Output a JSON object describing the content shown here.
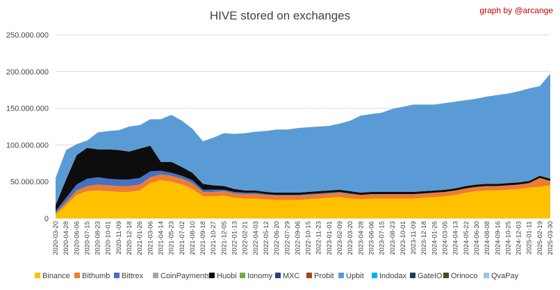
{
  "chart_data": {
    "type": "area",
    "title": "HIVE stored on exchanges",
    "annotation": "graph by @arcange",
    "stacked": true,
    "ylim": [
      0,
      250000000
    ],
    "y_ticks": [
      "0",
      "50.000.000",
      "100.000.000",
      "150.000.000",
      "200.000.000",
      "250.000.000"
    ],
    "x_ticks": [
      "2020-03-20",
      "2020-04-28",
      "2020-06-06",
      "2020-07-15",
      "2020-08-23",
      "2020-10-01",
      "2020-11-09",
      "2020-12-18",
      "2021-01-26",
      "2021-03-06",
      "2021-04-14",
      "2021-05-23",
      "2021-07-02",
      "2021-08-10",
      "2021-09-18",
      "2021-10-27",
      "2021-12-05",
      "2022-01-13",
      "2022-02-21",
      "2022-04-03",
      "2022-05-12",
      "2022-06-20",
      "2022-07-29",
      "2022-09-06",
      "2022-10-15",
      "2022-11-23",
      "2023-01-01",
      "2023-02-09",
      "2023-03-20",
      "2023-04-28",
      "2023-06-06",
      "2023-07-15",
      "2023-08-23",
      "2023-10-01",
      "2023-11-09",
      "2023-12-18",
      "2024-01-26",
      "2024-03-05",
      "2024-04-13",
      "2024-05-22",
      "2024-06-30",
      "2024-08-08",
      "2024-09-16",
      "2024-10-25",
      "2024-12-03",
      "2025-01-11",
      "2025-02-19",
      "2025-03-30"
    ],
    "x": [
      "2020-03-20",
      "2020-04-28",
      "2020-06-06",
      "2020-07-15",
      "2020-08-23",
      "2020-10-01",
      "2020-11-09",
      "2020-12-18",
      "2021-01-26",
      "2021-03-06",
      "2021-04-14",
      "2021-05-23",
      "2021-07-02",
      "2021-08-10",
      "2021-09-18",
      "2021-10-27",
      "2021-12-05",
      "2022-01-13",
      "2022-02-21",
      "2022-04-03",
      "2022-05-12",
      "2022-06-20",
      "2022-07-29",
      "2022-09-06",
      "2022-10-15",
      "2022-11-23",
      "2023-01-01",
      "2023-02-09",
      "2023-03-20",
      "2023-04-28",
      "2023-06-06",
      "2023-07-15",
      "2023-08-23",
      "2023-10-01",
      "2023-11-09",
      "2023-12-18",
      "2024-01-26",
      "2024-03-05",
      "2024-04-13",
      "2024-05-22",
      "2024-06-30",
      "2024-08-08",
      "2024-09-16",
      "2024-10-25",
      "2024-12-03",
      "2025-01-11",
      "2025-02-19",
      "2025-03-30"
    ],
    "series": [
      {
        "name": "Binance",
        "color": "#FFC000",
        "values": [
          5000000,
          18000000,
          32000000,
          37000000,
          38000000,
          37000000,
          36000000,
          36000000,
          38000000,
          48000000,
          52000000,
          50000000,
          46000000,
          40000000,
          30000000,
          30000000,
          31000000,
          28000000,
          27000000,
          27000000,
          26000000,
          25000000,
          25000000,
          25000000,
          26000000,
          27000000,
          28000000,
          29000000,
          27000000,
          26000000,
          27000000,
          27000000,
          27000000,
          27000000,
          27000000,
          28000000,
          29000000,
          30000000,
          32000000,
          35000000,
          37000000,
          38000000,
          38000000,
          39000000,
          40000000,
          42000000,
          43000000,
          45000000
        ]
      },
      {
        "name": "Bithumb",
        "color": "#ED7D31",
        "values": [
          2000000,
          4000000,
          6000000,
          7000000,
          8000000,
          8000000,
          8000000,
          8000000,
          8000000,
          8000000,
          8000000,
          8000000,
          8000000,
          8000000,
          6000000,
          6000000,
          6000000,
          6000000,
          6000000,
          6000000,
          6000000,
          6000000,
          6000000,
          6000000,
          6000000,
          6000000,
          6000000,
          6000000,
          6000000,
          6000000,
          6000000,
          6000000,
          6000000,
          6000000,
          6000000,
          6000000,
          6000000,
          6000000,
          6000000,
          6000000,
          6000000,
          6000000,
          6000000,
          6000000,
          6000000,
          6000000,
          12000000,
          6000000
        ]
      },
      {
        "name": "Bittrex",
        "color": "#4472C4",
        "values": [
          3000000,
          6000000,
          8000000,
          10000000,
          10000000,
          9000000,
          9000000,
          9000000,
          9000000,
          8000000,
          5000000,
          4000000,
          4000000,
          4000000,
          3000000,
          3000000,
          2000000,
          2000000,
          2000000,
          2000000,
          1000000,
          1000000,
          1000000,
          1000000,
          1000000,
          1000000,
          1000000,
          1000000,
          1000000,
          0,
          0,
          0,
          0,
          0,
          0,
          0,
          0,
          0,
          0,
          0,
          0,
          0,
          0,
          0,
          0,
          0,
          0,
          0
        ]
      },
      {
        "name": "CoinPayments",
        "color": "#A5A5A5",
        "values": [
          0,
          0,
          0,
          0,
          0,
          0,
          0,
          0,
          0,
          0,
          0,
          0,
          0,
          0,
          0,
          0,
          0,
          0,
          0,
          0,
          0,
          0,
          0,
          0,
          0,
          0,
          0,
          0,
          0,
          0,
          0,
          0,
          0,
          0,
          0,
          0,
          0,
          0,
          0,
          0,
          0,
          0,
          0,
          0,
          0,
          0,
          0,
          0
        ]
      },
      {
        "name": "Huobi",
        "color": "#0D0D0D",
        "values": [
          8000000,
          25000000,
          40000000,
          42000000,
          38000000,
          40000000,
          40000000,
          38000000,
          40000000,
          35000000,
          12000000,
          15000000,
          12000000,
          10000000,
          8000000,
          6000000,
          5000000,
          4000000,
          3000000,
          3000000,
          3000000,
          3000000,
          3000000,
          3000000,
          3000000,
          3000000,
          3000000,
          3000000,
          3000000,
          3000000,
          3000000,
          3000000,
          3000000,
          3000000,
          3000000,
          3000000,
          3000000,
          3000000,
          3000000,
          3000000,
          3000000,
          3000000,
          3000000,
          3000000,
          3000000,
          3000000,
          3000000,
          3000000
        ]
      },
      {
        "name": "Ionomy",
        "color": "#70AD47",
        "values": [
          0,
          0,
          0,
          0,
          0,
          0,
          0,
          0,
          0,
          0,
          0,
          0,
          0,
          0,
          0,
          0,
          0,
          0,
          0,
          0,
          0,
          0,
          0,
          0,
          0,
          0,
          0,
          0,
          0,
          0,
          0,
          0,
          0,
          0,
          0,
          0,
          0,
          0,
          0,
          0,
          0,
          0,
          0,
          0,
          0,
          0,
          0,
          0
        ]
      },
      {
        "name": "MXC",
        "color": "#264478",
        "values": [
          0,
          0,
          0,
          0,
          0,
          0,
          0,
          0,
          0,
          0,
          0,
          0,
          0,
          0,
          0,
          0,
          0,
          0,
          0,
          0,
          0,
          0,
          0,
          0,
          0,
          0,
          0,
          0,
          0,
          0,
          0,
          0,
          0,
          0,
          0,
          0,
          0,
          0,
          0,
          0,
          0,
          0,
          0,
          0,
          0,
          0,
          0,
          0
        ]
      },
      {
        "name": "Probit",
        "color": "#9E480E",
        "values": [
          0,
          0,
          0,
          0,
          0,
          0,
          0,
          0,
          0,
          0,
          0,
          0,
          0,
          0,
          0,
          0,
          0,
          0,
          0,
          0,
          0,
          0,
          0,
          0,
          0,
          0,
          0,
          0,
          0,
          0,
          0,
          0,
          0,
          0,
          0,
          0,
          0,
          0,
          0,
          0,
          0,
          0,
          0,
          0,
          0,
          0,
          0,
          0
        ]
      },
      {
        "name": "Upbit",
        "color": "#5B9BD5",
        "values": [
          37000000,
          40000000,
          15000000,
          10000000,
          23000000,
          25000000,
          27000000,
          34000000,
          32000000,
          36000000,
          58000000,
          64000000,
          63000000,
          60000000,
          58000000,
          65000000,
          72000000,
          75000000,
          78000000,
          80000000,
          83000000,
          86000000,
          86000000,
          88000000,
          88000000,
          88000000,
          88000000,
          90000000,
          96000000,
          105000000,
          106000000,
          108000000,
          113000000,
          116000000,
          119000000,
          118000000,
          117000000,
          118000000,
          118000000,
          117000000,
          117000000,
          119000000,
          121000000,
          122000000,
          124000000,
          126000000,
          122000000,
          143000000
        ]
      },
      {
        "name": "Indodax",
        "color": "#00B0F0",
        "values": [
          0,
          0,
          0,
          0,
          0,
          0,
          0,
          0,
          0,
          0,
          0,
          0,
          0,
          0,
          0,
          0,
          0,
          0,
          0,
          0,
          0,
          0,
          0,
          0,
          0,
          0,
          0,
          0,
          0,
          0,
          0,
          0,
          0,
          0,
          0,
          0,
          0,
          0,
          0,
          0,
          0,
          0,
          0,
          0,
          0,
          0,
          0,
          0
        ]
      },
      {
        "name": "GateIO",
        "color": "#1F3864",
        "values": [
          0,
          0,
          0,
          0,
          0,
          0,
          0,
          0,
          0,
          0,
          0,
          0,
          0,
          0,
          0,
          0,
          0,
          0,
          0,
          0,
          0,
          0,
          0,
          0,
          0,
          0,
          0,
          0,
          0,
          0,
          0,
          0,
          0,
          0,
          0,
          0,
          0,
          0,
          0,
          0,
          0,
          0,
          0,
          0,
          0,
          0,
          0,
          0
        ]
      },
      {
        "name": "Orinoco",
        "color": "#375623",
        "values": [
          0,
          0,
          0,
          0,
          0,
          0,
          0,
          0,
          0,
          0,
          0,
          0,
          0,
          0,
          0,
          0,
          0,
          0,
          0,
          0,
          0,
          0,
          0,
          0,
          0,
          0,
          0,
          0,
          0,
          0,
          0,
          0,
          0,
          0,
          0,
          0,
          0,
          0,
          0,
          0,
          0,
          0,
          0,
          0,
          0,
          0,
          0,
          0
        ]
      },
      {
        "name": "QvaPay",
        "color": "#9DC3E6",
        "values": [
          0,
          0,
          0,
          0,
          0,
          0,
          0,
          0,
          0,
          0,
          0,
          0,
          0,
          0,
          0,
          0,
          0,
          0,
          0,
          0,
          0,
          0,
          0,
          0,
          0,
          0,
          0,
          0,
          0,
          0,
          0,
          0,
          0,
          0,
          0,
          0,
          0,
          0,
          0,
          0,
          0,
          0,
          0,
          0,
          0,
          0,
          0,
          0
        ]
      }
    ],
    "grid": true,
    "legend_position": "bottom"
  }
}
